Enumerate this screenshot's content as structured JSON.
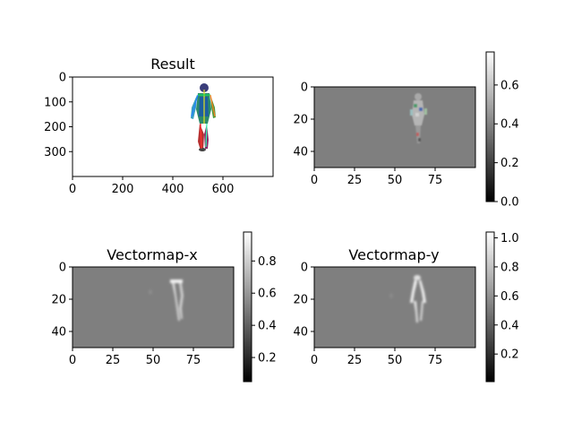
{
  "chart_data": [
    {
      "type": "image",
      "title": "Result",
      "xlim": [
        0,
        800
      ],
      "ylim": [
        400,
        0
      ],
      "xticks": [
        0,
        200,
        400,
        600
      ],
      "yticks": [
        0,
        100,
        200,
        300
      ],
      "content": "rendered human figure with color-coded pose skeleton on white background",
      "colorbar": null
    },
    {
      "type": "heatmap",
      "title": "",
      "xlim": [
        0,
        100
      ],
      "ylim": [
        50,
        0
      ],
      "xticks": [
        0,
        25,
        50,
        75
      ],
      "yticks": [
        0,
        20,
        40
      ],
      "colormap": "gray",
      "colorbar": {
        "min": 0.0,
        "max": 0.77,
        "ticks": [
          "0.0",
          "0.2",
          "0.4",
          "0.6"
        ]
      }
    },
    {
      "type": "heatmap",
      "title": "Vectormap-x",
      "xlim": [
        0,
        100
      ],
      "ylim": [
        50,
        0
      ],
      "xticks": [
        0,
        25,
        50,
        75
      ],
      "yticks": [
        0,
        20,
        40
      ],
      "colormap": "gray",
      "colorbar": {
        "min": 0.05,
        "max": 0.98,
        "ticks": [
          "0.2",
          "0.4",
          "0.6",
          "0.8"
        ]
      }
    },
    {
      "type": "heatmap",
      "title": "Vectormap-y",
      "xlim": [
        0,
        100
      ],
      "ylim": [
        50,
        0
      ],
      "xticks": [
        0,
        25,
        50,
        75
      ],
      "yticks": [
        0,
        20,
        40
      ],
      "colormap": "gray",
      "colorbar": {
        "min": 0.01,
        "max": 1.04,
        "ticks": [
          "0.2",
          "0.4",
          "0.6",
          "0.8",
          "1.0"
        ]
      }
    }
  ]
}
